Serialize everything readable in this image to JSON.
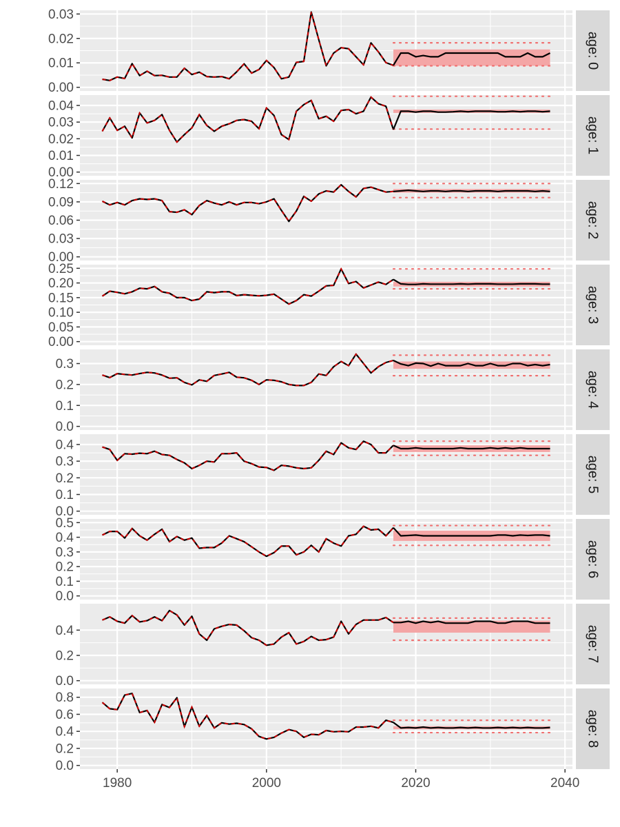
{
  "chart_data": {
    "type": "line",
    "layout": "faceted-vertical",
    "x_range": [
      1975,
      2041
    ],
    "x_ticks": [
      1980,
      2000,
      2020,
      2040
    ],
    "x_tick_labels": [
      "1980",
      "2000",
      "2020",
      "2040"
    ],
    "grid": true,
    "colors": {
      "panel_bg": "#ebebeb",
      "grid": "#ffffff",
      "strip_bg": "#d9d9d9",
      "line": "#000000",
      "dash": "#cc0000",
      "band": "#f4a6a6",
      "dotted": "#f07070"
    },
    "panels": [
      {
        "strip_label": "age: 0",
        "ylim": [
          -0.0015,
          0.0315
        ],
        "y_ticks": [
          0,
          0.01,
          0.02,
          0.03
        ],
        "y_tick_labels": [
          "0.00",
          "0.01",
          "0.02",
          "0.03"
        ],
        "history": [
          0.0033,
          0.0028,
          0.0042,
          0.0036,
          0.0097,
          0.0048,
          0.0066,
          0.0048,
          0.0049,
          0.0042,
          0.0042,
          0.0078,
          0.0052,
          0.0062,
          0.0044,
          0.0042,
          0.0044,
          0.0035,
          0.0063,
          0.0096,
          0.0058,
          0.0073,
          0.011,
          0.0081,
          0.0035,
          0.0042,
          0.0102,
          0.0106,
          0.0308,
          0.0195,
          0.0088,
          0.014,
          0.0162,
          0.0158,
          0.0125,
          0.0092,
          0.0182,
          0.0145,
          0.0101,
          0.009
        ],
        "forecast": {
          "start_year": 2017,
          "end_year": 2038,
          "median": [
            0.009,
            0.014,
            0.014,
            0.0125,
            0.013,
            0.0125,
            0.0125,
            0.014,
            0.014,
            0.014,
            0.014,
            0.014,
            0.014,
            0.014,
            0.014,
            0.0125,
            0.0125,
            0.0125,
            0.014,
            0.0125,
            0.0125,
            0.014
          ],
          "band_lower": 0.0088,
          "band_upper": 0.0155,
          "ci_lower": 0.0088,
          "ci_upper": 0.0182
        }
      },
      {
        "strip_label": "age: 1",
        "ylim": [
          -0.0022,
          0.0462
        ],
        "y_ticks": [
          0,
          0.01,
          0.02,
          0.03,
          0.04
        ],
        "y_tick_labels": [
          "0.00",
          "0.01",
          "0.02",
          "0.03",
          "0.04"
        ],
        "history": [
          0.0245,
          0.0325,
          0.025,
          0.0275,
          0.0205,
          0.0355,
          0.0295,
          0.031,
          0.0345,
          0.025,
          0.018,
          0.0225,
          0.0265,
          0.0345,
          0.028,
          0.0245,
          0.0275,
          0.029,
          0.031,
          0.0315,
          0.0305,
          0.026,
          0.0385,
          0.034,
          0.0225,
          0.0195,
          0.0365,
          0.0405,
          0.043,
          0.032,
          0.0335,
          0.0305,
          0.037,
          0.0375,
          0.035,
          0.0365,
          0.045,
          0.041,
          0.0395,
          0.0255
        ],
        "forecast": {
          "start_year": 2017,
          "end_year": 2038,
          "median": [
            0.0255,
            0.0365,
            0.0365,
            0.036,
            0.0365,
            0.0365,
            0.036,
            0.036,
            0.0362,
            0.0365,
            0.0362,
            0.0365,
            0.0365,
            0.0365,
            0.0362,
            0.0362,
            0.0365,
            0.0362,
            0.0365,
            0.0365,
            0.0362,
            0.0365
          ],
          "band_lower": 0.0355,
          "band_upper": 0.0375,
          "ci_lower": 0.0258,
          "ci_upper": 0.0455
        }
      },
      {
        "strip_label": "age: 2",
        "ylim": [
          -0.006,
          0.126
        ],
        "y_ticks": [
          0,
          0.03,
          0.06,
          0.09,
          0.12
        ],
        "y_tick_labels": [
          "0.00",
          "0.03",
          "0.06",
          "0.09",
          "0.12"
        ],
        "history": [
          0.091,
          0.085,
          0.089,
          0.085,
          0.092,
          0.095,
          0.094,
          0.095,
          0.092,
          0.074,
          0.073,
          0.077,
          0.069,
          0.084,
          0.092,
          0.088,
          0.085,
          0.09,
          0.085,
          0.089,
          0.089,
          0.087,
          0.09,
          0.095,
          0.076,
          0.058,
          0.075,
          0.099,
          0.091,
          0.103,
          0.108,
          0.106,
          0.118,
          0.107,
          0.098,
          0.112,
          0.114,
          0.11,
          0.106,
          0.107
        ],
        "forecast": {
          "start_year": 2017,
          "end_year": 2038,
          "median": [
            0.107,
            0.108,
            0.109,
            0.108,
            0.107,
            0.108,
            0.108,
            0.107,
            0.108,
            0.108,
            0.107,
            0.108,
            0.108,
            0.108,
            0.107,
            0.108,
            0.108,
            0.108,
            0.108,
            0.107,
            0.108,
            0.107
          ],
          "band_lower": 0.105,
          "band_upper": 0.111,
          "ci_lower": 0.097,
          "ci_upper": 0.12
        }
      },
      {
        "strip_label": "age: 3",
        "ylim": [
          -0.0125,
          0.2625
        ],
        "y_ticks": [
          0,
          0.05,
          0.1,
          0.15,
          0.2,
          0.25
        ],
        "y_tick_labels": [
          "0.00",
          "0.05",
          "0.10",
          "0.15",
          "0.20",
          "0.25"
        ],
        "history": [
          0.155,
          0.172,
          0.168,
          0.163,
          0.17,
          0.182,
          0.18,
          0.188,
          0.17,
          0.165,
          0.15,
          0.15,
          0.14,
          0.145,
          0.17,
          0.167,
          0.17,
          0.17,
          0.157,
          0.16,
          0.158,
          0.156,
          0.158,
          0.162,
          0.145,
          0.128,
          0.14,
          0.16,
          0.155,
          0.172,
          0.19,
          0.192,
          0.248,
          0.198,
          0.205,
          0.183,
          0.193,
          0.203,
          0.195,
          0.212
        ],
        "forecast": {
          "start_year": 2017,
          "end_year": 2038,
          "median": [
            0.212,
            0.197,
            0.195,
            0.195,
            0.197,
            0.196,
            0.196,
            0.196,
            0.196,
            0.197,
            0.196,
            0.197,
            0.197,
            0.197,
            0.196,
            0.196,
            0.196,
            0.197,
            0.197,
            0.197,
            0.196,
            0.196
          ],
          "band_lower": 0.188,
          "band_upper": 0.204,
          "ci_lower": 0.18,
          "ci_upper": 0.248
        }
      },
      {
        "strip_label": "age: 4",
        "ylim": [
          -0.0175,
          0.3675
        ],
        "y_ticks": [
          0,
          0.1,
          0.2,
          0.3
        ],
        "y_tick_labels": [
          "0.0",
          "0.1",
          "0.2",
          "0.3"
        ],
        "history": [
          0.245,
          0.233,
          0.252,
          0.248,
          0.245,
          0.252,
          0.258,
          0.255,
          0.245,
          0.23,
          0.232,
          0.21,
          0.198,
          0.222,
          0.215,
          0.243,
          0.25,
          0.258,
          0.235,
          0.232,
          0.22,
          0.2,
          0.222,
          0.22,
          0.213,
          0.2,
          0.195,
          0.195,
          0.21,
          0.25,
          0.243,
          0.285,
          0.31,
          0.29,
          0.345,
          0.3,
          0.255,
          0.285,
          0.305,
          0.315
        ],
        "forecast": {
          "start_year": 2017,
          "end_year": 2038,
          "median": [
            0.315,
            0.298,
            0.29,
            0.302,
            0.3,
            0.288,
            0.3,
            0.29,
            0.29,
            0.29,
            0.3,
            0.29,
            0.29,
            0.3,
            0.29,
            0.29,
            0.3,
            0.3,
            0.29,
            0.295,
            0.29,
            0.295
          ],
          "band_lower": 0.275,
          "band_upper": 0.31,
          "ci_lower": 0.242,
          "ci_upper": 0.34
        }
      },
      {
        "strip_label": "age: 5",
        "ylim": [
          -0.022,
          0.462
        ],
        "y_ticks": [
          0,
          0.1,
          0.2,
          0.3,
          0.4
        ],
        "y_tick_labels": [
          "0.0",
          "0.1",
          "0.2",
          "0.3",
          "0.4"
        ],
        "history": [
          0.385,
          0.37,
          0.305,
          0.345,
          0.342,
          0.348,
          0.345,
          0.36,
          0.34,
          0.335,
          0.31,
          0.29,
          0.255,
          0.275,
          0.3,
          0.295,
          0.345,
          0.345,
          0.35,
          0.3,
          0.285,
          0.265,
          0.262,
          0.245,
          0.275,
          0.27,
          0.26,
          0.255,
          0.26,
          0.305,
          0.36,
          0.34,
          0.41,
          0.38,
          0.37,
          0.42,
          0.4,
          0.35,
          0.35,
          0.395
        ],
        "forecast": {
          "start_year": 2017,
          "end_year": 2038,
          "median": [
            0.395,
            0.375,
            0.375,
            0.38,
            0.375,
            0.375,
            0.375,
            0.375,
            0.375,
            0.38,
            0.375,
            0.375,
            0.375,
            0.38,
            0.375,
            0.38,
            0.375,
            0.38,
            0.375,
            0.375,
            0.375,
            0.375
          ],
          "band_lower": 0.355,
          "band_upper": 0.395,
          "ci_lower": 0.335,
          "ci_upper": 0.42
        }
      },
      {
        "strip_label": "age: 6",
        "ylim": [
          -0.025,
          0.525
        ],
        "y_ticks": [
          0,
          0.1,
          0.2,
          0.3,
          0.4,
          0.5
        ],
        "y_tick_labels": [
          "0.0",
          "0.1",
          "0.2",
          "0.3",
          "0.4",
          "0.5"
        ],
        "history": [
          0.415,
          0.44,
          0.44,
          0.395,
          0.46,
          0.41,
          0.38,
          0.42,
          0.455,
          0.37,
          0.405,
          0.38,
          0.395,
          0.325,
          0.33,
          0.33,
          0.36,
          0.41,
          0.39,
          0.37,
          0.335,
          0.3,
          0.27,
          0.295,
          0.34,
          0.34,
          0.28,
          0.3,
          0.345,
          0.3,
          0.39,
          0.36,
          0.34,
          0.41,
          0.42,
          0.475,
          0.45,
          0.455,
          0.41,
          0.465
        ],
        "forecast": {
          "start_year": 2017,
          "end_year": 2038,
          "median": [
            0.465,
            0.41,
            0.412,
            0.415,
            0.41,
            0.41,
            0.41,
            0.41,
            0.41,
            0.41,
            0.41,
            0.41,
            0.41,
            0.41,
            0.415,
            0.415,
            0.41,
            0.415,
            0.412,
            0.415,
            0.415,
            0.41
          ],
          "band_lower": 0.375,
          "band_upper": 0.445,
          "ci_lower": 0.345,
          "ci_upper": 0.48
        }
      },
      {
        "strip_label": "age: 7",
        "ylim": [
          -0.029,
          0.609
        ],
        "y_ticks": [
          0,
          0.2,
          0.4
        ],
        "y_tick_labels": [
          "0.0",
          "0.2",
          "0.4"
        ],
        "history": [
          0.48,
          0.505,
          0.47,
          0.455,
          0.515,
          0.465,
          0.475,
          0.505,
          0.475,
          0.555,
          0.52,
          0.44,
          0.51,
          0.37,
          0.32,
          0.41,
          0.43,
          0.445,
          0.44,
          0.395,
          0.34,
          0.32,
          0.28,
          0.29,
          0.345,
          0.38,
          0.29,
          0.31,
          0.35,
          0.32,
          0.325,
          0.345,
          0.47,
          0.37,
          0.445,
          0.48,
          0.48,
          0.48,
          0.5,
          0.46
        ],
        "forecast": {
          "start_year": 2017,
          "end_year": 2038,
          "median": [
            0.46,
            0.46,
            0.47,
            0.455,
            0.47,
            0.46,
            0.47,
            0.455,
            0.455,
            0.455,
            0.455,
            0.47,
            0.47,
            0.47,
            0.455,
            0.455,
            0.47,
            0.47,
            0.47,
            0.455,
            0.455,
            0.455
          ],
          "band_lower": 0.38,
          "band_upper": 0.475,
          "ci_lower": 0.32,
          "ci_upper": 0.495
        }
      },
      {
        "strip_label": "age: 8",
        "ylim": [
          -0.043,
          0.903
        ],
        "y_ticks": [
          0,
          0.2,
          0.4,
          0.6,
          0.8
        ],
        "y_tick_labels": [
          "0.0",
          "0.2",
          "0.4",
          "0.6",
          "0.8"
        ],
        "history": [
          0.74,
          0.665,
          0.655,
          0.825,
          0.845,
          0.62,
          0.645,
          0.505,
          0.715,
          0.68,
          0.795,
          0.455,
          0.685,
          0.46,
          0.585,
          0.44,
          0.5,
          0.485,
          0.495,
          0.48,
          0.43,
          0.34,
          0.31,
          0.33,
          0.38,
          0.42,
          0.4,
          0.33,
          0.365,
          0.36,
          0.41,
          0.395,
          0.4,
          0.395,
          0.45,
          0.45,
          0.46,
          0.44,
          0.53,
          0.505
        ],
        "forecast": {
          "start_year": 2017,
          "end_year": 2038,
          "median": [
            0.505,
            0.44,
            0.445,
            0.44,
            0.45,
            0.44,
            0.445,
            0.44,
            0.44,
            0.445,
            0.44,
            0.445,
            0.44,
            0.44,
            0.445,
            0.44,
            0.445,
            0.44,
            0.445,
            0.44,
            0.44,
            0.445
          ],
          "band_lower": 0.425,
          "band_upper": 0.46,
          "ci_lower": 0.385,
          "ci_upper": 0.53
        }
      }
    ]
  }
}
